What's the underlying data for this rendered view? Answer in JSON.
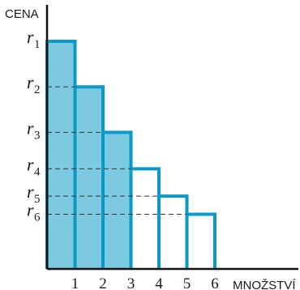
{
  "chart_data": {
    "type": "bar",
    "ylabel": "CENA",
    "xlabel": "MNOŽSTVÍ",
    "categories": [
      "1",
      "2",
      "3",
      "4",
      "5",
      "6"
    ],
    "values": [
      100,
      80,
      60,
      44,
      32,
      24
    ],
    "filled": [
      true,
      true,
      true,
      false,
      false,
      false
    ],
    "price_labels": [
      {
        "symbol": "r",
        "sub": "1"
      },
      {
        "symbol": "r",
        "sub": "2"
      },
      {
        "symbol": "r",
        "sub": "3"
      },
      {
        "symbol": "r",
        "sub": "4"
      },
      {
        "symbol": "r",
        "sub": "5"
      },
      {
        "symbol": "r",
        "sub": "6"
      }
    ],
    "xlim": [
      0,
      9
    ],
    "ylim": [
      0,
      118
    ],
    "grid": false,
    "colors": {
      "bar_stroke": "#0a9ac9",
      "bar_fill": "#7cc9e0",
      "axis": "#111111",
      "dash": "#333333"
    }
  }
}
